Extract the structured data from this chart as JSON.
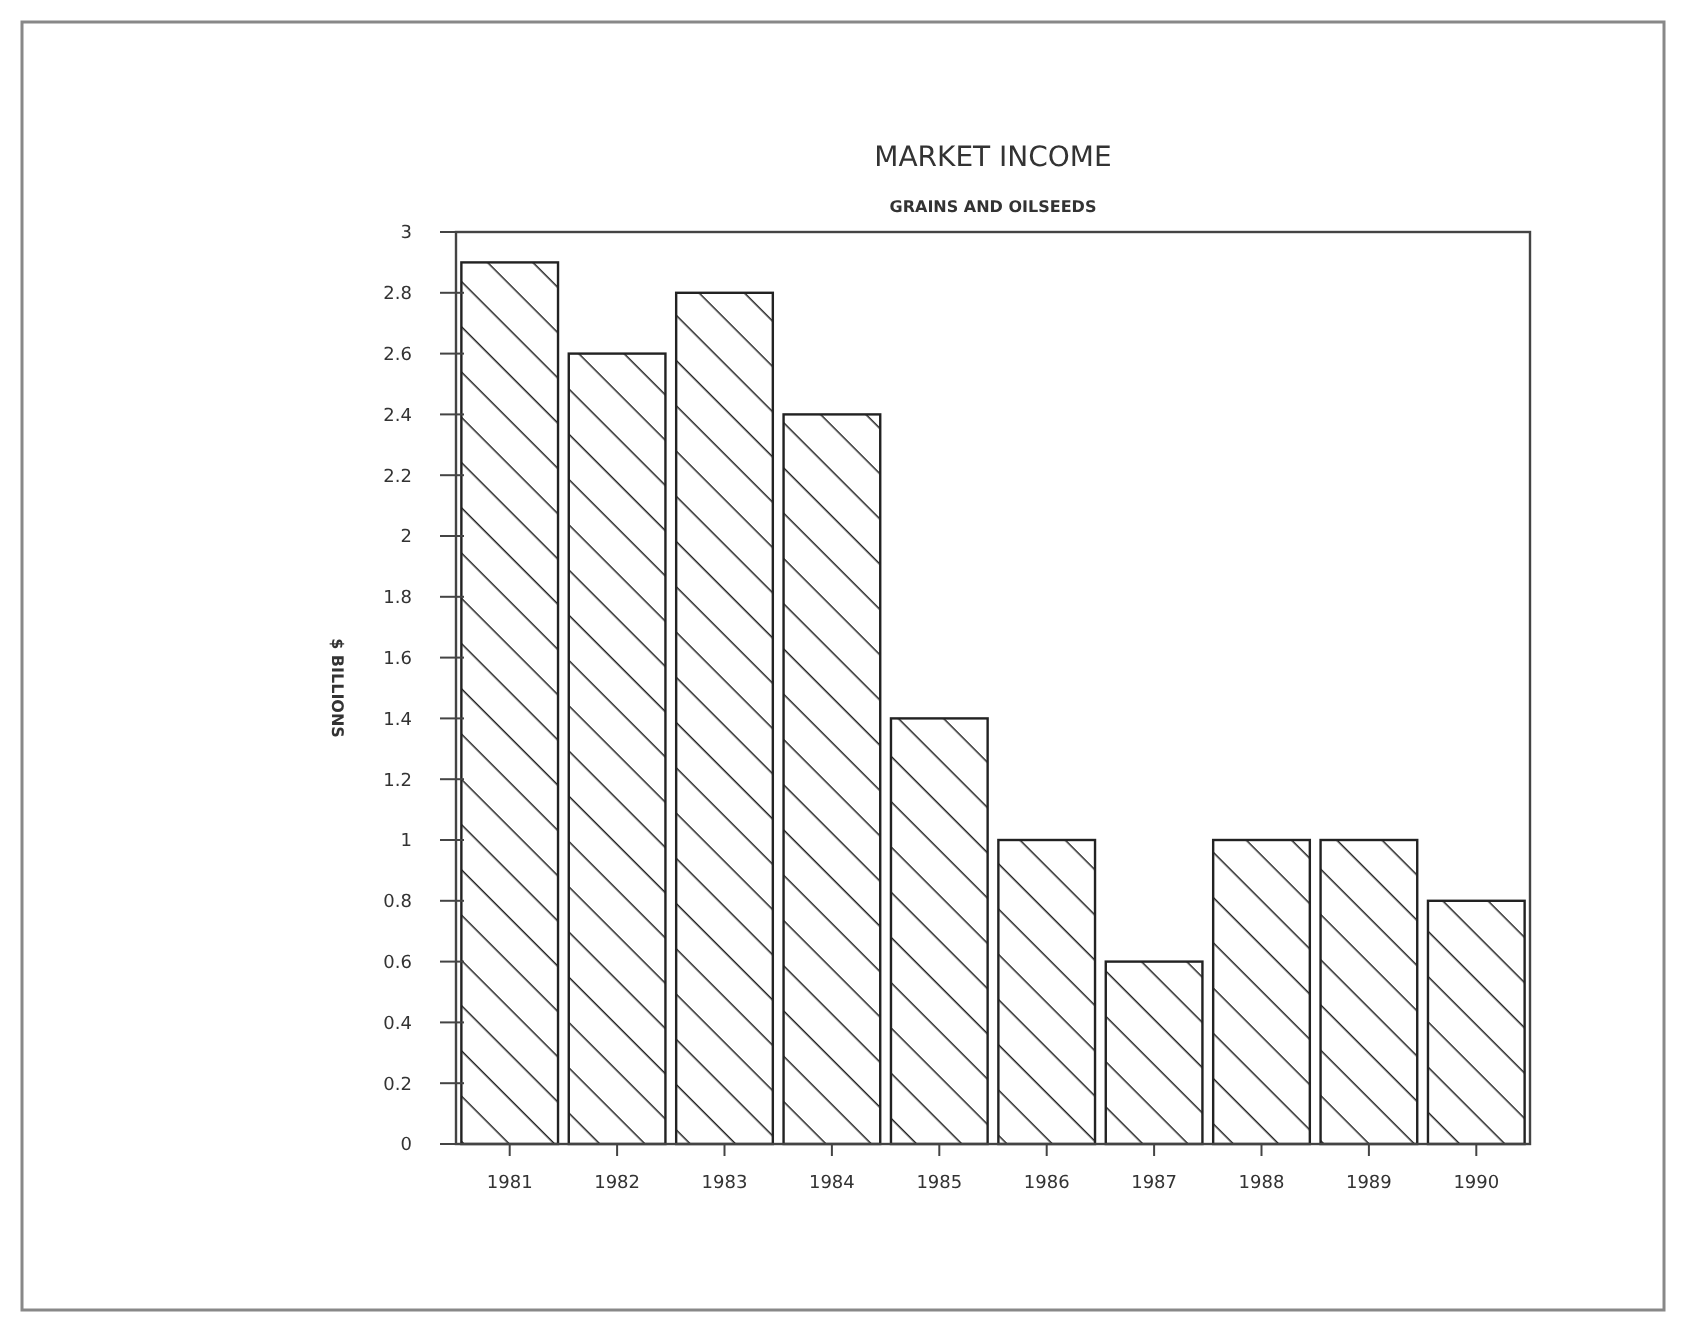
{
  "chart_data": {
    "type": "bar",
    "title": "MARKET INCOME",
    "subtitle": "GRAINS AND OILSEEDS",
    "ylabel": "$ BILLIONS",
    "categories": [
      "1981",
      "1982",
      "1983",
      "1984",
      "1985",
      "1986",
      "1987",
      "1988",
      "1989",
      "1990"
    ],
    "values": [
      2.9,
      2.6,
      2.8,
      2.4,
      1.4,
      1,
      0.6,
      1,
      1,
      0.8
    ],
    "color": "#222222",
    "ylim": [
      0,
      3
    ],
    "yticks": [
      0,
      0.2,
      0.4,
      0.6,
      0.8,
      1,
      1.2,
      1.4,
      1.6,
      1.8,
      2,
      2.2,
      2.4,
      2.6,
      2.8,
      3
    ],
    "grid": false
  }
}
